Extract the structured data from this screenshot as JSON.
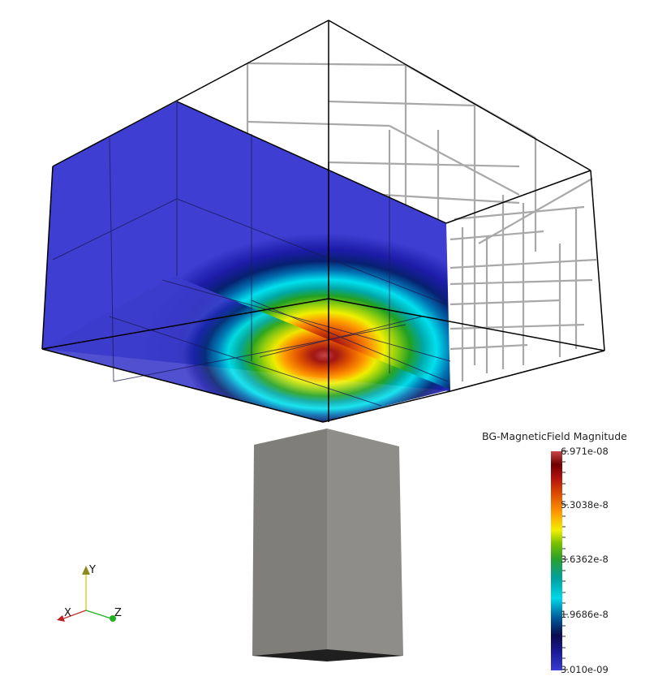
{
  "colorbar": {
    "title": "BG-MagneticField Magnitude",
    "labels": [
      "6.971e-08",
      "5.3038e-8",
      "3.6362e-8",
      "1.9686e-8",
      "3.010e-09"
    ],
    "colormap": [
      "#3b3bd0",
      "#1b1b9a",
      "#0b0b50",
      "#005a9a",
      "#00c8d8",
      "#00a0a0",
      "#2aa02a",
      "#7ac000",
      "#e8e800",
      "#ff9900",
      "#e05000",
      "#b01010",
      "#700000",
      "#c84848"
    ]
  },
  "axes": {
    "x_label": "X",
    "y_label": "Y",
    "z_label": "Z",
    "x_color": "#c83030",
    "y_color": "#d6d000",
    "z_color": "#20b020"
  },
  "colors": {
    "background": "#ffffff",
    "magnet_face_left": "#7f7e7a",
    "magnet_face_right": "#8e8d89",
    "slice_base": "#3c3ccc"
  }
}
